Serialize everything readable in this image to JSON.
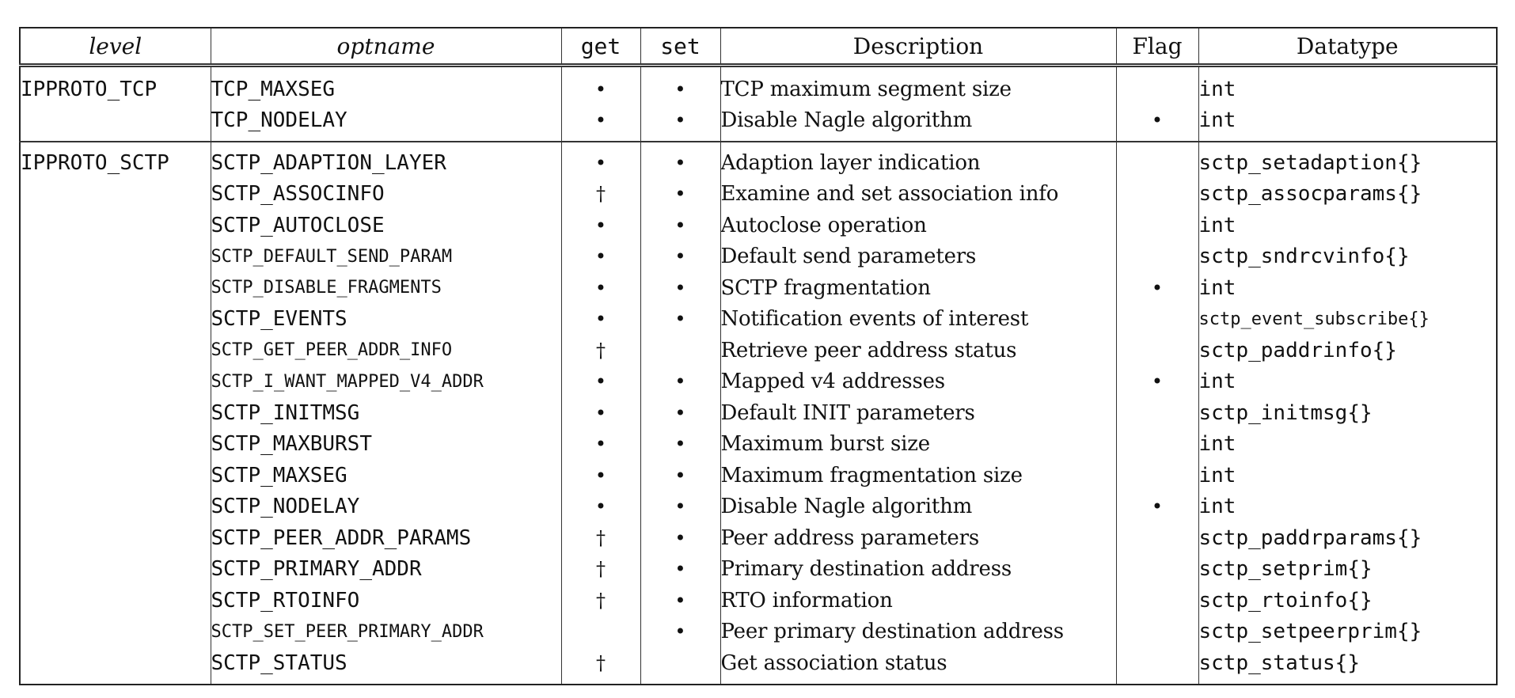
{
  "headers": {
    "level": "level",
    "optname": "optname",
    "get": "get",
    "set": "set",
    "description": "Description",
    "flag": "Flag",
    "datatype": "Datatype"
  },
  "groups": [
    {
      "level": "IPPROTO_TCP",
      "rows": [
        {
          "optname": "TCP_MAXSEG",
          "get": "•",
          "set": "•",
          "description": "TCP maximum segment size",
          "flag": "",
          "datatype": "int"
        },
        {
          "optname": "TCP_NODELAY",
          "get": "•",
          "set": "•",
          "description": "Disable Nagle algorithm",
          "flag": "•",
          "datatype": "int"
        }
      ]
    },
    {
      "level": "IPPROTO_SCTP",
      "rows": [
        {
          "optname": "SCTP_ADAPTION_LAYER",
          "get": "•",
          "set": "•",
          "description": "Adaption layer indication",
          "flag": "",
          "datatype": "sctp_setadaption{}"
        },
        {
          "optname": "SCTP_ASSOCINFO",
          "get": "†",
          "set": "•",
          "description": "Examine and set association info",
          "flag": "",
          "datatype": "sctp_assocparams{}"
        },
        {
          "optname": "SCTP_AUTOCLOSE",
          "get": "•",
          "set": "•",
          "description": "Autoclose operation",
          "flag": "",
          "datatype": "int"
        },
        {
          "optname": "SCTP_DEFAULT_SEND_PARAM",
          "get": "•",
          "set": "•",
          "description": "Default send parameters",
          "flag": "",
          "datatype": "sctp_sndrcvinfo{}"
        },
        {
          "optname": "SCTP_DISABLE_FRAGMENTS",
          "get": "•",
          "set": "•",
          "description": "SCTP fragmentation",
          "flag": "•",
          "datatype": "int"
        },
        {
          "optname": "SCTP_EVENTS",
          "get": "•",
          "set": "•",
          "description": "Notification events of interest",
          "flag": "",
          "datatype": "sctp_event_subscribe{}"
        },
        {
          "optname": "SCTP_GET_PEER_ADDR_INFO",
          "get": "†",
          "set": "",
          "description": "Retrieve peer address status",
          "flag": "",
          "datatype": "sctp_paddrinfo{}"
        },
        {
          "optname": "SCTP_I_WANT_MAPPED_V4_ADDR",
          "get": "•",
          "set": "•",
          "description": "Mapped v4 addresses",
          "flag": "•",
          "datatype": "int"
        },
        {
          "optname": "SCTP_INITMSG",
          "get": "•",
          "set": "•",
          "description": "Default INIT parameters",
          "flag": "",
          "datatype": "sctp_initmsg{}"
        },
        {
          "optname": "SCTP_MAXBURST",
          "get": "•",
          "set": "•",
          "description": "Maximum burst size",
          "flag": "",
          "datatype": "int"
        },
        {
          "optname": "SCTP_MAXSEG",
          "get": "•",
          "set": "•",
          "description": "Maximum fragmentation size",
          "flag": "",
          "datatype": "int"
        },
        {
          "optname": "SCTP_NODELAY",
          "get": "•",
          "set": "•",
          "description": "Disable Nagle algorithm",
          "flag": "•",
          "datatype": "int"
        },
        {
          "optname": "SCTP_PEER_ADDR_PARAMS",
          "get": "†",
          "set": "•",
          "description": "Peer address parameters",
          "flag": "",
          "datatype": "sctp_paddrparams{}"
        },
        {
          "optname": "SCTP_PRIMARY_ADDR",
          "get": "†",
          "set": "•",
          "description": "Primary destination address",
          "flag": "",
          "datatype": "sctp_setprim{}"
        },
        {
          "optname": "SCTP_RTOINFO",
          "get": "†",
          "set": "•",
          "description": "RTO information",
          "flag": "",
          "datatype": "sctp_rtoinfo{}"
        },
        {
          "optname": "SCTP_SET_PEER_PRIMARY_ADDR",
          "get": "",
          "set": "•",
          "description": "Peer primary destination address",
          "flag": "",
          "datatype": "sctp_setpeerprim{}"
        },
        {
          "optname": "SCTP_STATUS",
          "get": "†",
          "set": "",
          "description": "Get association status",
          "flag": "",
          "datatype": "sctp_status{}"
        }
      ]
    }
  ]
}
